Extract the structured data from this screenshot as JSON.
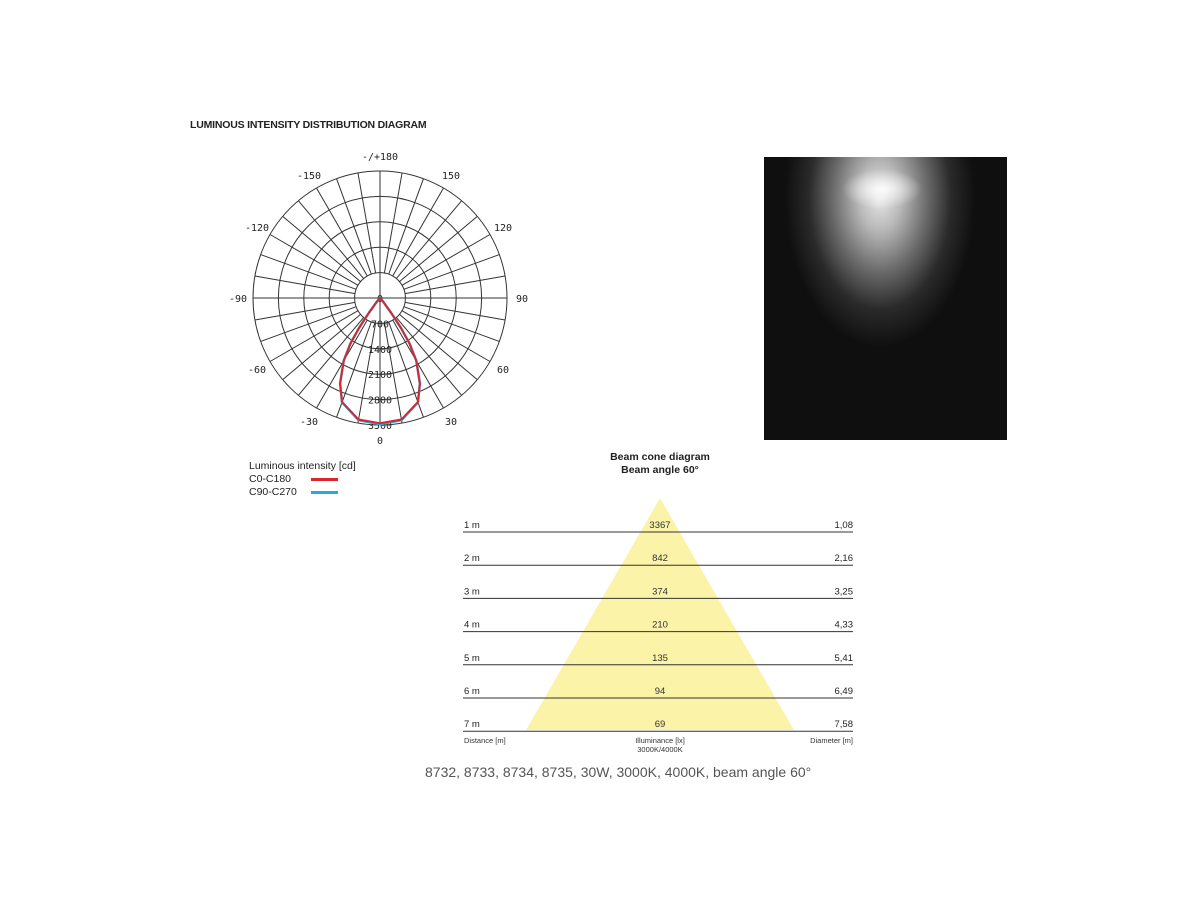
{
  "title": "LUMINOUS INTENSITY DISTRIBUTION DIAGRAM",
  "chart_data": [
    {
      "type": "polar",
      "title": "",
      "angle_labels": [
        "-/+180",
        "150",
        "120",
        "90",
        "60",
        "30",
        "0",
        "-30",
        "-60",
        "-90",
        "-120",
        "-150"
      ],
      "radial_ticks": [
        "0",
        "700",
        "1400",
        "2100",
        "2800",
        "3500"
      ],
      "rmax": 3500,
      "legend_title": "Luminous intensity [cd]",
      "series": [
        {
          "name": "C0-C180",
          "color": "#d9262c",
          "angles": [
            0,
            10,
            20,
            25,
            30,
            33,
            35,
            37,
            40,
            50,
            90
          ],
          "values": [
            3450,
            3400,
            3050,
            2600,
            2000,
            1500,
            1000,
            500,
            150,
            20,
            0
          ]
        },
        {
          "name": "C90-C270",
          "color": "#25a9e0",
          "angles": [
            0,
            10,
            20,
            25,
            30,
            33,
            35,
            37,
            40,
            50,
            90
          ],
          "values": [
            3480,
            3420,
            3060,
            2600,
            2000,
            1500,
            1000,
            500,
            150,
            20,
            0
          ]
        }
      ]
    },
    {
      "type": "table",
      "title": "Beam cone diagram",
      "subtitle": "Beam angle 60°",
      "beam_angle": 60,
      "cone_color": "#fbf3a8",
      "rows": [
        {
          "distance": "1 m",
          "illuminance": "3367",
          "diameter": "1,08"
        },
        {
          "distance": "2 m",
          "illuminance": "842",
          "diameter": "2,16"
        },
        {
          "distance": "3 m",
          "illuminance": "374",
          "diameter": "3,25"
        },
        {
          "distance": "4 m",
          "illuminance": "210",
          "diameter": "4,33"
        },
        {
          "distance": "5 m",
          "illuminance": "135",
          "diameter": "5,41"
        },
        {
          "distance": "6 m",
          "illuminance": "94",
          "diameter": "6,49"
        },
        {
          "distance": "7 m",
          "illuminance": "69",
          "diameter": "7,58"
        }
      ],
      "footer": {
        "distance": "Distance [m]",
        "illuminance": "Illuminance [lx]",
        "illuminance2": "3000K/4000K",
        "diameter": "Diameter [m]"
      }
    }
  ],
  "caption": "8732, 8733, 8734, 8735, 30W, 3000K, 4000K, beam angle 60°"
}
